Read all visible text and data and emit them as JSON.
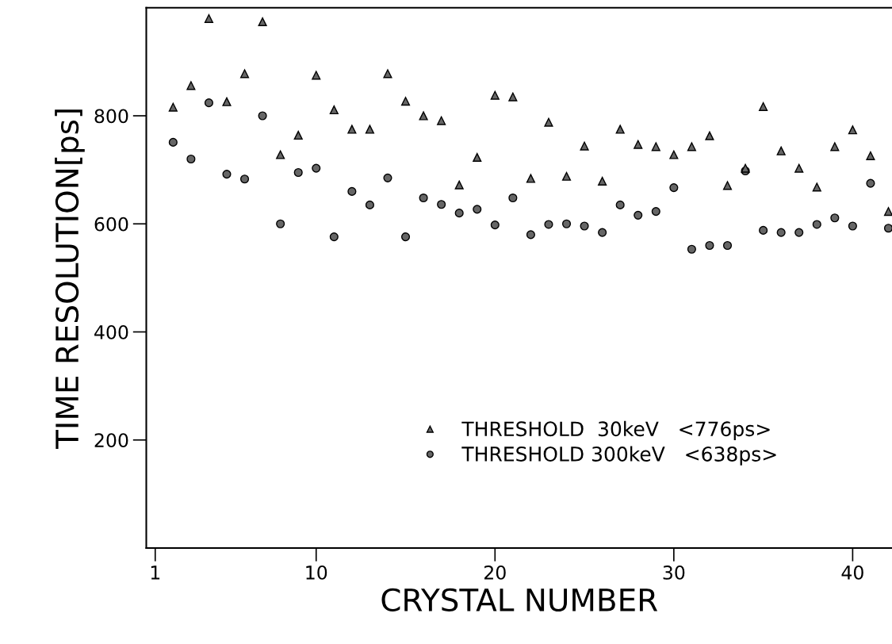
{
  "chart_data": {
    "type": "scatter",
    "xlabel": "CRYSTAL NUMBER",
    "ylabel": "TIME RESOLUTION[ps]",
    "x": [
      2,
      3,
      4,
      5,
      6,
      7,
      8,
      9,
      10,
      11,
      12,
      13,
      14,
      15,
      16,
      17,
      18,
      19,
      20,
      21,
      22,
      23,
      24,
      25,
      26,
      27,
      28,
      29,
      30,
      31,
      32,
      33,
      34,
      35,
      36,
      37,
      38,
      39,
      40,
      41,
      42
    ],
    "series": [
      {
        "name": "THRESHOLD  30keV   <776ps>",
        "color": "#666666",
        "marker": "triangle",
        "values": [
          816,
          856,
          980,
          826,
          878,
          974,
          728,
          764,
          875,
          811,
          775,
          775,
          878,
          827,
          800,
          791,
          672,
          723,
          838,
          835,
          684,
          788,
          688,
          744,
          679,
          775,
          747,
          743,
          728,
          743,
          763,
          671,
          703,
          817,
          735,
          703,
          668,
          743,
          774,
          726,
          623
        ]
      },
      {
        "name": "THRESHOLD 300keV   <638ps>",
        "color": "#666666",
        "marker": "circle",
        "values": [
          751,
          720,
          824,
          692,
          683,
          800,
          600,
          695,
          703,
          576,
          660,
          635,
          685,
          576,
          648,
          636,
          620,
          627,
          598,
          648,
          580,
          599,
          600,
          596,
          584,
          635,
          616,
          623,
          667,
          553,
          560,
          560,
          698,
          588,
          584,
          584,
          599,
          611,
          596,
          675,
          592
        ]
      }
    ],
    "xlim": [
      0.5,
      42.2
    ],
    "ylim": [
      0,
      1000
    ],
    "xticks": [
      1,
      10,
      20,
      30,
      40
    ],
    "yticks": [
      200,
      400,
      600,
      800
    ],
    "grid": false,
    "legend": "bottom right"
  }
}
